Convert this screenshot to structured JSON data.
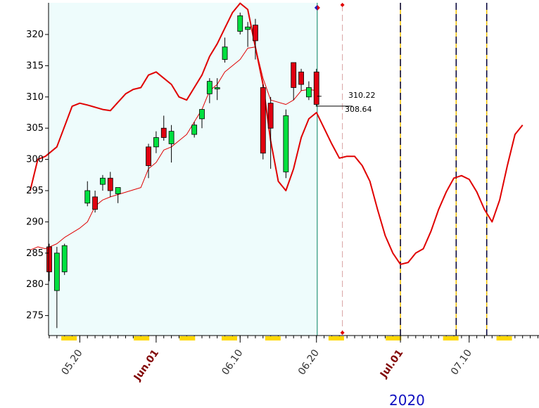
{
  "chart_data": {
    "type": "candlestick",
    "year_label": "2020",
    "ylim": [
      272,
      325
    ],
    "y_ticks": [
      275,
      280,
      285,
      290,
      295,
      300,
      305,
      310,
      315,
      320
    ],
    "x_tick_labels": [
      {
        "label": "05.20",
        "day": 4,
        "month_start": false
      },
      {
        "label": "Jun.01",
        "day": 14,
        "month_start": true
      },
      {
        "label": "06.10",
        "day": 25,
        "month_start": false
      },
      {
        "label": "06.20",
        "day": 35,
        "month_start": false
      },
      {
        "label": "Jul.01",
        "day": 46,
        "month_start": true
      },
      {
        "label": "07.10",
        "day": 55,
        "month_start": false
      }
    ],
    "price_labels": [
      "310.22",
      "308.64"
    ],
    "candles": [
      {
        "day": 0,
        "open": 286.0,
        "high": 286.5,
        "low": 280.5,
        "close": 282.0
      },
      {
        "day": 1,
        "open": 279.0,
        "high": 286.0,
        "low": 273.0,
        "close": 285.0
      },
      {
        "day": 2,
        "open": 282.0,
        "high": 286.5,
        "low": 281.5,
        "close": 286.2
      },
      {
        "day": 5,
        "open": 293.0,
        "high": 296.5,
        "low": 292.5,
        "close": 295.0
      },
      {
        "day": 6,
        "open": 294.0,
        "high": 295.0,
        "low": 291.5,
        "close": 292.0
      },
      {
        "day": 7,
        "open": 296.0,
        "high": 297.5,
        "low": 295.0,
        "close": 297.0
      },
      {
        "day": 8,
        "open": 297.0,
        "high": 298.0,
        "low": 294.0,
        "close": 295.0
      },
      {
        "day": 9,
        "open": 294.5,
        "high": 295.5,
        "low": 293.0,
        "close": 295.5
      },
      {
        "day": 13,
        "open": 302.0,
        "high": 302.5,
        "low": 297.0,
        "close": 299.0
      },
      {
        "day": 14,
        "open": 302.0,
        "high": 304.5,
        "low": 301.0,
        "close": 303.5
      },
      {
        "day": 15,
        "open": 305.0,
        "high": 307.0,
        "low": 303.0,
        "close": 303.5
      },
      {
        "day": 16,
        "open": 302.5,
        "high": 305.5,
        "low": 299.5,
        "close": 304.5
      },
      {
        "day": 19,
        "open": 304.0,
        "high": 306.0,
        "low": 303.5,
        "close": 305.5
      },
      {
        "day": 20,
        "open": 306.5,
        "high": 308.0,
        "low": 305.0,
        "close": 308.0
      },
      {
        "day": 21,
        "open": 310.5,
        "high": 313.0,
        "low": 309.0,
        "close": 312.5
      },
      {
        "day": 22,
        "open": 311.3,
        "high": 313.0,
        "low": 309.5,
        "close": 311.5
      },
      {
        "day": 23,
        "open": 316.0,
        "high": 319.5,
        "low": 315.5,
        "close": 318.0
      },
      {
        "day": 25,
        "open": 320.5,
        "high": 323.5,
        "low": 320.0,
        "close": 323.0
      },
      {
        "day": 26,
        "open": 320.8,
        "high": 322.0,
        "low": 318.0,
        "close": 321.2
      },
      {
        "day": 27,
        "open": 321.5,
        "high": 322.5,
        "low": 316.0,
        "close": 319.0
      },
      {
        "day": 28,
        "open": 311.5,
        "high": 312.0,
        "low": 300.0,
        "close": 301.0
      },
      {
        "day": 29,
        "open": 309.0,
        "high": 310.0,
        "low": 298.5,
        "close": 305.0
      },
      {
        "day": 31,
        "open": 298.0,
        "high": 308.0,
        "low": 297.0,
        "close": 307.0
      },
      {
        "day": 32,
        "open": 315.5,
        "high": 315.5,
        "low": 309.5,
        "close": 311.5
      },
      {
        "day": 33,
        "open": 314.0,
        "high": 314.5,
        "low": 311.0,
        "close": 312.0
      },
      {
        "day": 34,
        "open": 310.0,
        "high": 312.5,
        "low": 309.5,
        "close": 311.5
      },
      {
        "day": 35,
        "open": 314.0,
        "high": 314.5,
        "low": 308.5,
        "close": 308.8
      }
    ],
    "upper_band": [
      [
        -2.5,
        295
      ],
      [
        -1.5,
        300
      ],
      [
        -0.5,
        300.5
      ],
      [
        1,
        302
      ],
      [
        3,
        308.5
      ],
      [
        4,
        309.0
      ],
      [
        5,
        308.7
      ],
      [
        7,
        308
      ],
      [
        8,
        307.8
      ],
      [
        10,
        310.5
      ],
      [
        11,
        311.2
      ],
      [
        12,
        311.5
      ],
      [
        13,
        313.5
      ],
      [
        14,
        314
      ],
      [
        15,
        313
      ],
      [
        16,
        312
      ],
      [
        17,
        310
      ],
      [
        18,
        309.5
      ],
      [
        19,
        311.5
      ],
      [
        20,
        313.5
      ],
      [
        21,
        316.5
      ],
      [
        22,
        318.5
      ],
      [
        23,
        321
      ],
      [
        24,
        323.5
      ],
      [
        25,
        325
      ],
      [
        26,
        324
      ],
      [
        27,
        318
      ],
      [
        28,
        312
      ],
      [
        29,
        303
      ],
      [
        30,
        296.5
      ],
      [
        31,
        295
      ],
      [
        32,
        298.5
      ],
      [
        33,
        303.5
      ],
      [
        34,
        306.5
      ],
      [
        35,
        307.5
      ],
      [
        36,
        305
      ],
      [
        37,
        302.5
      ],
      [
        38,
        300.2
      ],
      [
        39,
        300.5
      ],
      [
        40,
        300.5
      ],
      [
        41,
        299
      ],
      [
        42,
        296.5
      ],
      [
        43,
        292
      ],
      [
        44,
        287.8
      ],
      [
        45,
        285
      ],
      [
        46,
        283.2
      ],
      [
        47,
        283.5
      ],
      [
        48,
        285
      ],
      [
        49,
        285.7
      ],
      [
        50,
        288.5
      ],
      [
        51,
        292
      ],
      [
        52,
        294.8
      ],
      [
        53,
        297
      ],
      [
        54,
        297.4
      ],
      [
        55,
        296.8
      ],
      [
        56,
        294.8
      ],
      [
        57,
        292
      ],
      [
        58,
        290
      ],
      [
        59,
        293.5
      ],
      [
        60,
        299
      ],
      [
        61,
        304
      ],
      [
        62,
        305.5
      ]
    ],
    "lower_band": [
      [
        -2.5,
        285.5
      ],
      [
        -1.5,
        286
      ],
      [
        -0.5,
        285.7
      ],
      [
        1,
        286.5
      ],
      [
        2,
        287.5
      ],
      [
        4,
        289
      ],
      [
        5,
        290
      ],
      [
        6,
        292.5
      ],
      [
        7,
        293.5
      ],
      [
        8,
        294
      ],
      [
        12,
        295.5
      ],
      [
        13,
        298.5
      ],
      [
        14,
        299.5
      ],
      [
        15,
        301.5
      ],
      [
        16,
        302
      ],
      [
        17,
        303
      ],
      [
        18,
        304
      ],
      [
        19,
        306
      ],
      [
        20,
        308
      ],
      [
        21,
        311
      ],
      [
        22,
        312
      ],
      [
        23,
        314
      ],
      [
        24,
        315
      ],
      [
        25,
        316
      ],
      [
        26,
        317.8
      ],
      [
        27,
        318
      ],
      [
        28,
        313
      ],
      [
        29,
        309.5
      ],
      [
        31,
        308.8
      ],
      [
        32,
        309.5
      ],
      [
        33,
        311
      ],
      [
        34,
        311.2
      ],
      [
        35,
        311
      ]
    ],
    "today_day": 35.1,
    "projection_day": 38.4,
    "cycle_days": [
      46,
      53.3,
      57.3
    ],
    "highlight_days": [
      2.5,
      12,
      18,
      23.5,
      29.2,
      37.5,
      45,
      52.5,
      59.5
    ]
  }
}
